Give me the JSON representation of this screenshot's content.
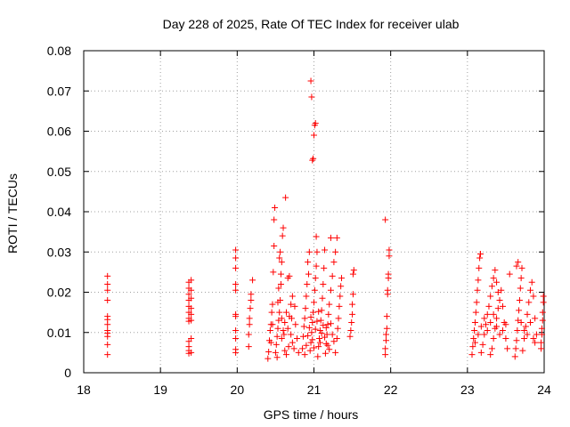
{
  "chart_data": {
    "type": "scatter",
    "title": "Day 228 of 2025, Rate Of TEC Index for receiver ulab",
    "xlabel": "GPS time / hours",
    "ylabel": "ROTI / TECUs",
    "xlim": [
      18,
      24
    ],
    "ylim": [
      0,
      0.08
    ],
    "x_ticks": [
      "18",
      "19",
      "20",
      "21",
      "22",
      "23",
      "24"
    ],
    "y_ticks": [
      "0",
      "0.01",
      "0.02",
      "0.03",
      "0.04",
      "0.05",
      "0.06",
      "0.07",
      "0.08"
    ],
    "grid": true,
    "marker": "+",
    "color": "#ff0000",
    "series": [
      {
        "points": [
          [
            18.31,
            0.0045
          ],
          [
            18.31,
            0.007
          ],
          [
            18.31,
            0.009
          ],
          [
            18.31,
            0.0098
          ],
          [
            18.31,
            0.0105
          ],
          [
            18.31,
            0.012
          ],
          [
            18.31,
            0.0132
          ],
          [
            18.31,
            0.014
          ],
          [
            18.31,
            0.018
          ],
          [
            18.31,
            0.0205
          ],
          [
            18.31,
            0.022
          ],
          [
            18.31,
            0.024
          ],
          [
            19.37,
            0.0048
          ],
          [
            19.37,
            0.0055
          ],
          [
            19.37,
            0.0065
          ],
          [
            19.37,
            0.0078
          ],
          [
            19.37,
            0.0128
          ],
          [
            19.37,
            0.0135
          ],
          [
            19.37,
            0.015
          ],
          [
            19.37,
            0.0165
          ],
          [
            19.37,
            0.018
          ],
          [
            19.37,
            0.0195
          ],
          [
            19.37,
            0.021
          ],
          [
            19.37,
            0.0225
          ],
          [
            19.4,
            0.005
          ],
          [
            19.4,
            0.0085
          ],
          [
            19.4,
            0.013
          ],
          [
            19.4,
            0.0145
          ],
          [
            19.4,
            0.016
          ],
          [
            19.4,
            0.0185
          ],
          [
            19.4,
            0.0205
          ],
          [
            19.4,
            0.023
          ],
          [
            19.98,
            0.005
          ],
          [
            19.98,
            0.0058
          ],
          [
            19.98,
            0.0085
          ],
          [
            19.98,
            0.0105
          ],
          [
            19.98,
            0.014
          ],
          [
            19.98,
            0.0145
          ],
          [
            19.98,
            0.0205
          ],
          [
            19.98,
            0.022
          ],
          [
            19.98,
            0.026
          ],
          [
            19.98,
            0.0285
          ],
          [
            19.98,
            0.0305
          ],
          [
            20.15,
            0.0065
          ],
          [
            20.15,
            0.0095
          ],
          [
            20.16,
            0.012
          ],
          [
            20.16,
            0.0135
          ],
          [
            20.17,
            0.016
          ],
          [
            20.18,
            0.018
          ],
          [
            20.18,
            0.0195
          ],
          [
            20.2,
            0.023
          ],
          [
            20.4,
            0.0035
          ],
          [
            20.41,
            0.0052
          ],
          [
            20.42,
            0.008
          ],
          [
            20.43,
            0.0105
          ],
          [
            20.44,
            0.012
          ],
          [
            20.45,
            0.015
          ],
          [
            20.46,
            0.017
          ],
          [
            20.47,
            0.025
          ],
          [
            20.48,
            0.0315
          ],
          [
            20.48,
            0.038
          ],
          [
            20.49,
            0.041
          ],
          [
            20.5,
            0.005
          ],
          [
            20.51,
            0.007
          ],
          [
            20.52,
            0.009
          ],
          [
            20.53,
            0.011
          ],
          [
            20.54,
            0.013
          ],
          [
            20.55,
            0.015
          ],
          [
            20.56,
            0.018
          ],
          [
            20.57,
            0.022
          ],
          [
            20.58,
            0.0275
          ],
          [
            20.59,
            0.034
          ],
          [
            20.6,
            0.036
          ],
          [
            20.55,
            0.0285
          ],
          [
            20.56,
            0.03
          ],
          [
            20.57,
            0.0245
          ],
          [
            20.58,
            0.0085
          ],
          [
            20.6,
            0.0105
          ],
          [
            20.62,
            0.0125
          ],
          [
            20.64,
            0.015
          ],
          [
            20.66,
            0.0235
          ],
          [
            20.68,
            0.024
          ],
          [
            20.7,
            0.0095
          ],
          [
            20.72,
            0.0075
          ],
          [
            20.74,
            0.006
          ],
          [
            20.62,
            0.0055
          ],
          [
            20.64,
            0.0045
          ],
          [
            20.66,
            0.011
          ],
          [
            20.68,
            0.014
          ],
          [
            20.7,
            0.017
          ],
          [
            20.72,
            0.019
          ],
          [
            20.75,
            0.0165
          ],
          [
            20.76,
            0.012
          ],
          [
            20.78,
            0.0085
          ],
          [
            20.8,
            0.005
          ],
          [
            20.52,
            0.0038
          ],
          [
            20.53,
            0.0175
          ],
          [
            20.54,
            0.021
          ],
          [
            20.63,
            0.0435
          ],
          [
            20.46,
            0.012
          ],
          [
            20.44,
            0.0075
          ],
          [
            20.58,
            0.0135
          ],
          [
            20.61,
            0.0095
          ],
          [
            20.67,
            0.0065
          ],
          [
            20.71,
            0.0135
          ],
          [
            20.85,
            0.006
          ],
          [
            20.86,
            0.009
          ],
          [
            20.87,
            0.0115
          ],
          [
            20.88,
            0.0135
          ],
          [
            20.89,
            0.016
          ],
          [
            20.9,
            0.019
          ],
          [
            20.91,
            0.022
          ],
          [
            20.92,
            0.0275
          ],
          [
            20.93,
            0.0245
          ],
          [
            20.94,
            0.03
          ],
          [
            20.95,
            0.0055
          ],
          [
            20.96,
            0.0075
          ],
          [
            20.97,
            0.01
          ],
          [
            20.98,
            0.0125
          ],
          [
            20.99,
            0.015
          ],
          [
            21.0,
            0.0175
          ],
          [
            21.01,
            0.0205
          ],
          [
            21.02,
            0.0235
          ],
          [
            21.03,
            0.0265
          ],
          [
            21.04,
            0.03
          ],
          [
            20.96,
            0.0725
          ],
          [
            20.97,
            0.0685
          ],
          [
            20.98,
            0.0528
          ],
          [
            20.99,
            0.0532
          ],
          [
            21.0,
            0.059
          ],
          [
            21.01,
            0.0615
          ],
          [
            21.02,
            0.062
          ],
          [
            21.03,
            0.0338
          ],
          [
            21.05,
            0.004
          ],
          [
            21.06,
            0.0065
          ],
          [
            21.07,
            0.0085
          ],
          [
            21.08,
            0.0105
          ],
          [
            21.09,
            0.013
          ],
          [
            21.1,
            0.0155
          ],
          [
            21.11,
            0.0185
          ],
          [
            21.12,
            0.022
          ],
          [
            21.13,
            0.026
          ],
          [
            21.14,
            0.0305
          ],
          [
            21.15,
            0.0048
          ],
          [
            21.16,
            0.0072
          ],
          [
            21.17,
            0.0095
          ],
          [
            21.18,
            0.012
          ],
          [
            21.19,
            0.0145
          ],
          [
            21.2,
            0.017
          ],
          [
            21.22,
            0.0205
          ],
          [
            21.24,
            0.024
          ],
          [
            21.26,
            0.0275
          ],
          [
            21.28,
            0.03
          ],
          [
            21.22,
            0.0335
          ],
          [
            21.3,
            0.0335
          ],
          [
            21.28,
            0.005
          ],
          [
            21.3,
            0.0085
          ],
          [
            21.31,
            0.011
          ],
          [
            21.32,
            0.0135
          ],
          [
            21.33,
            0.0165
          ],
          [
            21.34,
            0.019
          ],
          [
            21.35,
            0.0215
          ],
          [
            21.36,
            0.0235
          ],
          [
            20.88,
            0.0045
          ],
          [
            20.9,
            0.0068
          ],
          [
            20.92,
            0.0092
          ],
          [
            20.94,
            0.0112
          ],
          [
            20.96,
            0.0138
          ],
          [
            20.98,
            0.0082
          ],
          [
            21.0,
            0.0062
          ],
          [
            21.02,
            0.0108
          ],
          [
            21.04,
            0.0128
          ],
          [
            21.06,
            0.0152
          ],
          [
            21.08,
            0.0075
          ],
          [
            21.1,
            0.0098
          ],
          [
            21.12,
            0.0118
          ],
          [
            21.14,
            0.0088
          ],
          [
            21.16,
            0.0112
          ],
          [
            21.18,
            0.0068
          ],
          [
            21.2,
            0.0058
          ],
          [
            21.22,
            0.0122
          ],
          [
            21.24,
            0.0095
          ],
          [
            21.26,
            0.0078
          ],
          [
            21.47,
            0.009
          ],
          [
            21.48,
            0.0105
          ],
          [
            21.49,
            0.0125
          ],
          [
            21.5,
            0.0145
          ],
          [
            21.5,
            0.017
          ],
          [
            21.51,
            0.0195
          ],
          [
            21.51,
            0.0245
          ],
          [
            21.52,
            0.0255
          ],
          [
            21.93,
            0.0045
          ],
          [
            21.93,
            0.006
          ],
          [
            21.94,
            0.008
          ],
          [
            21.94,
            0.0095
          ],
          [
            21.95,
            0.011
          ],
          [
            21.95,
            0.014
          ],
          [
            21.96,
            0.0195
          ],
          [
            21.96,
            0.0205
          ],
          [
            21.97,
            0.0235
          ],
          [
            21.97,
            0.0245
          ],
          [
            21.98,
            0.029
          ],
          [
            21.98,
            0.0305
          ],
          [
            21.93,
            0.038
          ],
          [
            23.06,
            0.0045
          ],
          [
            23.07,
            0.0065
          ],
          [
            23.08,
            0.0085
          ],
          [
            23.09,
            0.0105
          ],
          [
            23.1,
            0.0125
          ],
          [
            23.11,
            0.015
          ],
          [
            23.12,
            0.0175
          ],
          [
            23.13,
            0.0205
          ],
          [
            23.14,
            0.023
          ],
          [
            23.15,
            0.026
          ],
          [
            23.16,
            0.0285
          ],
          [
            23.17,
            0.0295
          ],
          [
            23.18,
            0.005
          ],
          [
            23.2,
            0.007
          ],
          [
            23.22,
            0.0095
          ],
          [
            23.24,
            0.012
          ],
          [
            23.26,
            0.0145
          ],
          [
            23.28,
            0.0165
          ],
          [
            23.3,
            0.019
          ],
          [
            23.32,
            0.0215
          ],
          [
            23.34,
            0.0235
          ],
          [
            23.36,
            0.0255
          ],
          [
            23.38,
            0.0225
          ],
          [
            23.4,
            0.02
          ],
          [
            23.3,
            0.0045
          ],
          [
            23.32,
            0.006
          ],
          [
            23.34,
            0.0085
          ],
          [
            23.36,
            0.011
          ],
          [
            23.38,
            0.0135
          ],
          [
            23.4,
            0.016
          ],
          [
            23.42,
            0.018
          ],
          [
            23.44,
            0.0205
          ],
          [
            23.46,
            0.0165
          ],
          [
            23.48,
            0.0125
          ],
          [
            23.5,
            0.0085
          ],
          [
            23.52,
            0.006
          ],
          [
            23.1,
            0.0075
          ],
          [
            23.14,
            0.0095
          ],
          [
            23.18,
            0.0115
          ],
          [
            23.22,
            0.0135
          ],
          [
            23.26,
            0.0105
          ],
          [
            23.3,
            0.0125
          ],
          [
            23.34,
            0.0145
          ],
          [
            23.38,
            0.0115
          ],
          [
            23.42,
            0.0095
          ],
          [
            23.46,
            0.0105
          ],
          [
            23.5,
            0.012
          ],
          [
            23.55,
            0.0245
          ],
          [
            23.62,
            0.004
          ],
          [
            23.63,
            0.006
          ],
          [
            23.64,
            0.008
          ],
          [
            23.65,
            0.0105
          ],
          [
            23.66,
            0.013
          ],
          [
            23.67,
            0.0155
          ],
          [
            23.68,
            0.018
          ],
          [
            23.69,
            0.021
          ],
          [
            23.7,
            0.0235
          ],
          [
            23.71,
            0.026
          ],
          [
            23.66,
            0.0275
          ],
          [
            23.64,
            0.0265
          ],
          [
            23.72,
            0.0055
          ],
          [
            23.74,
            0.0085
          ],
          [
            23.76,
            0.0115
          ],
          [
            23.78,
            0.0145
          ],
          [
            23.8,
            0.0175
          ],
          [
            23.82,
            0.0205
          ],
          [
            23.84,
            0.0225
          ],
          [
            23.86,
            0.019
          ],
          [
            23.88,
            0.0135
          ],
          [
            23.9,
            0.0095
          ],
          [
            23.7,
            0.0125
          ],
          [
            23.74,
            0.0105
          ],
          [
            23.78,
            0.0095
          ],
          [
            23.82,
            0.0125
          ],
          [
            23.86,
            0.0085
          ],
          [
            23.88,
            0.0075
          ],
          [
            23.96,
            0.006
          ],
          [
            23.96,
            0.0075
          ],
          [
            23.97,
            0.0095
          ],
          [
            23.97,
            0.011
          ],
          [
            23.98,
            0.013
          ],
          [
            23.98,
            0.015
          ],
          [
            23.99,
            0.0175
          ],
          [
            23.99,
            0.019
          ]
        ]
      }
    ]
  }
}
